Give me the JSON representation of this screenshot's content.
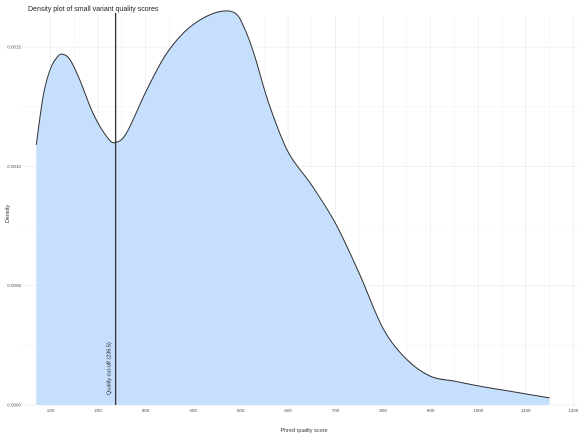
{
  "chart_data": {
    "type": "area",
    "title": "Density plot of small variant quality scores",
    "xlabel": "Phred quality score",
    "ylabel": "Density",
    "xlim": [
      40,
      1210
    ],
    "ylim": [
      0.0,
      0.00163
    ],
    "x_ticks": [
      100,
      200,
      300,
      400,
      500,
      600,
      700,
      800,
      900,
      1000,
      1100,
      1200
    ],
    "x_tick_labels": [
      "100",
      "200",
      "300",
      "400",
      "500",
      "600",
      "700",
      "800",
      "900",
      "1000",
      "1100",
      "1200"
    ],
    "y_ticks": [
      0.0,
      0.0005,
      0.001,
      0.0015
    ],
    "y_tick_labels": [
      "0.0000",
      "0.0005",
      "0.0010",
      "0.0015"
    ],
    "grid": true,
    "fill_color": "#c6dffd",
    "line_color": "#333333",
    "x": [
      70,
      85,
      100,
      115,
      125,
      140,
      160,
      190,
      220,
      237,
      260,
      300,
      340,
      380,
      420,
      460,
      490,
      510,
      530,
      560,
      600,
      650,
      700,
      750,
      800,
      850,
      900,
      950,
      1000,
      1060,
      1120,
      1150
    ],
    "y": [
      0.00109,
      0.0013,
      0.00141,
      0.00146,
      0.00147,
      0.00145,
      0.00137,
      0.00122,
      0.00112,
      0.0011,
      0.00114,
      0.00131,
      0.00146,
      0.00156,
      0.00162,
      0.00165,
      0.00164,
      0.00157,
      0.00146,
      0.00126,
      0.00106,
      0.00092,
      0.00076,
      0.00055,
      0.00032,
      0.00019,
      0.00012,
      0.0001,
      8e-05,
      6e-05,
      4e-05,
      3e-05
    ],
    "annotations": [
      {
        "type": "vline",
        "x": 237,
        "color": "#333333",
        "label": "Quality cut-off (236.5)"
      }
    ]
  }
}
